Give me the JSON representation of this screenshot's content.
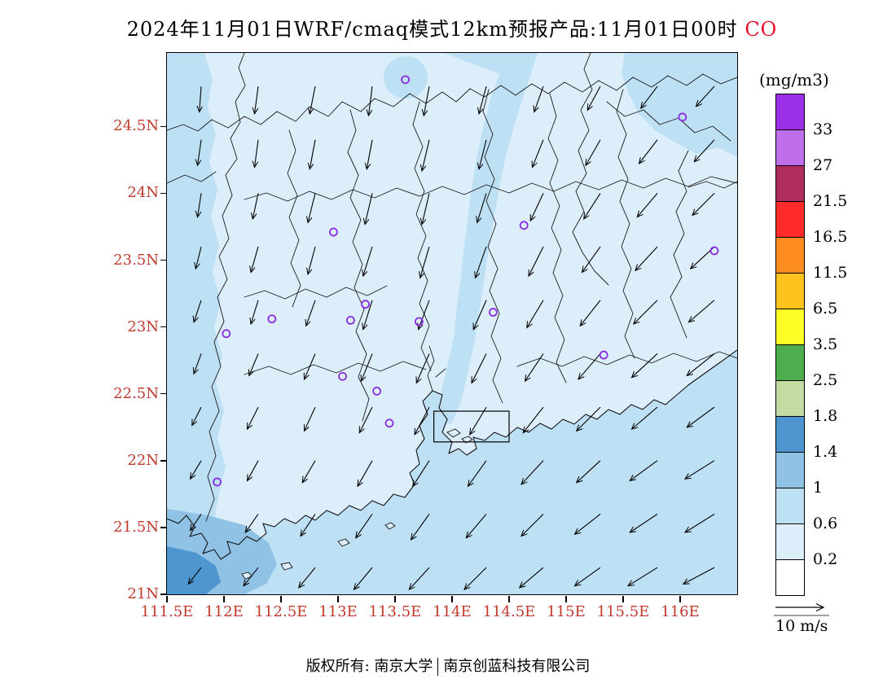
{
  "title": {
    "main": "2024年11月01日WRF/cmaq模式12km预报产品:11月01日00时",
    "species": "CO",
    "species_color": "#e8112d"
  },
  "axes": {
    "tick_color": "#c0392b",
    "lat_ticks": [
      "24.5N",
      "24N",
      "23.5N",
      "23N",
      "22.5N",
      "22N",
      "21.5N",
      "21N"
    ],
    "lat_values": [
      24.5,
      24,
      23.5,
      23,
      22.5,
      22,
      21.5,
      21
    ],
    "lon_ticks": [
      "111.5E",
      "112E",
      "112.5E",
      "113E",
      "113.5E",
      "114E",
      "114.5E",
      "115E",
      "115.5E",
      "116E"
    ],
    "lon_values": [
      111.5,
      112,
      112.5,
      113,
      113.5,
      114,
      114.5,
      115,
      115.5,
      116
    ]
  },
  "legend": {
    "title": "(mg/m3)",
    "labels": [
      "33",
      "27",
      "21.5",
      "16.5",
      "11.5",
      "6.5",
      "3.5",
      "2.5",
      "1.8",
      "1.4",
      "1",
      "0.6",
      "0.2"
    ]
  },
  "wind_ref": {
    "label": "10 m/s"
  },
  "footer": {
    "left": "版权所有: 南京大学",
    "right": "南京创蓝科技有限公司"
  },
  "chart_data": {
    "type": "heatmap",
    "title": "2024年11月01日WRF/cmaq模式12km预报产品:11月01日00时 CO",
    "units": "mg/m3",
    "extent": {
      "lon_min": 111.5,
      "lon_max": 116.5,
      "lat_min": 21.0,
      "lat_max": 25.05
    },
    "levels": [
      0.2,
      0.6,
      1,
      1.4,
      1.8,
      2.5,
      3.5,
      6.5,
      11.5,
      16.5,
      21.5,
      27,
      33
    ],
    "level_colors": [
      "#FFFFFF",
      "#DCEEF9",
      "#BEE0F4",
      "#8FC2E4",
      "#4E96D0",
      "#C2DCA4",
      "#4CAE4C",
      "#FFFF28",
      "#FFC31E",
      "#FF8C1E",
      "#FF2A2A",
      "#B02C5C",
      "#BE6EE8",
      "#9B30E8"
    ],
    "station_color": "#8A2BE2",
    "stations": [
      [
        113.59,
        24.85
      ],
      [
        116.02,
        24.57
      ],
      [
        112.96,
        23.71
      ],
      [
        114.63,
        23.76
      ],
      [
        116.3,
        23.57
      ],
      [
        113.11,
        23.05
      ],
      [
        113.24,
        23.17
      ],
      [
        112.42,
        23.06
      ],
      [
        112.02,
        22.95
      ],
      [
        113.71,
        23.04
      ],
      [
        114.36,
        23.11
      ],
      [
        115.33,
        22.79
      ],
      [
        113.04,
        22.63
      ],
      [
        113.34,
        22.52
      ],
      [
        113.45,
        22.28
      ],
      [
        111.94,
        21.84
      ]
    ],
    "inner_box": {
      "lon_min": 113.84,
      "lon_max": 114.5,
      "lat_min": 22.14,
      "lat_max": 22.37
    },
    "wind_reference": {
      "speed_m_s": 10,
      "label": "10 m/s"
    },
    "wind": {
      "lons": [
        111.8,
        112.3,
        112.8,
        113.3,
        113.8,
        114.3,
        114.8,
        115.3,
        115.8,
        116.3
      ],
      "lats": [
        24.8,
        24.4,
        24.0,
        23.6,
        23.2,
        22.8,
        22.4,
        22.0,
        21.6,
        21.2
      ],
      "u": [
        [
          -0.5,
          -1,
          -1.5,
          -1,
          -1.5,
          -2,
          -2.5,
          -3.5,
          -4.5,
          -5
        ],
        [
          -1,
          -1,
          -1.5,
          -1.5,
          -2,
          -2,
          -3,
          -4,
          -5,
          -5.5
        ],
        [
          -1,
          -1.5,
          -2,
          -2,
          -2,
          -2.5,
          -3.5,
          -4.5,
          -5.5,
          -6
        ],
        [
          -1.5,
          -2,
          -2,
          -2.5,
          -2.5,
          -3,
          -4,
          -5,
          -6,
          -6.5
        ],
        [
          -2,
          -2,
          -2.5,
          -2.5,
          -3,
          -3.5,
          -4.5,
          -5.5,
          -6.5,
          -7
        ],
        [
          -2,
          -2.5,
          -3,
          -3,
          -3.5,
          -4,
          -5,
          -6,
          -7,
          -7.5
        ],
        [
          -2.5,
          -3,
          -3,
          -3.5,
          -4,
          -4.5,
          -5.5,
          -6.5,
          -7,
          -7.5
        ],
        [
          -3,
          -3,
          -3.5,
          -4,
          -4.5,
          -5,
          -6,
          -6.5,
          -7.5,
          -8
        ],
        [
          -3,
          -3.5,
          -4,
          -4.5,
          -5,
          -5.5,
          -6,
          -7,
          -7.5,
          -8
        ],
        [
          -3.5,
          -4,
          -4.5,
          -5,
          -5.5,
          -6,
          -6.5,
          -7,
          -8,
          -8.5
        ]
      ],
      "v": [
        [
          -7,
          -7.5,
          -7.5,
          -8,
          -8,
          -7.5,
          -7,
          -6.5,
          -6,
          -5.5
        ],
        [
          -7,
          -7.5,
          -8,
          -8,
          -8.5,
          -8,
          -7.5,
          -7,
          -6.5,
          -6
        ],
        [
          -6.5,
          -7,
          -8,
          -8.5,
          -8.5,
          -8,
          -7.5,
          -7,
          -6.5,
          -6
        ],
        [
          -6,
          -7,
          -7.5,
          -8,
          -8.5,
          -8.5,
          -8,
          -7,
          -6.5,
          -6
        ],
        [
          -6,
          -6.5,
          -7,
          -8,
          -8,
          -8,
          -7.5,
          -7,
          -6.5,
          -6
        ],
        [
          -5.5,
          -6,
          -7,
          -7.5,
          -8,
          -8,
          -7.5,
          -7,
          -6.5,
          -6
        ],
        [
          -5,
          -6,
          -6.5,
          -7,
          -7.5,
          -7.5,
          -7,
          -6.5,
          -6,
          -5.5
        ],
        [
          -5,
          -5.5,
          -6,
          -7,
          -7,
          -7,
          -6.5,
          -6,
          -5.5,
          -5
        ],
        [
          -4.5,
          -5,
          -6,
          -6.5,
          -7,
          -6.5,
          -6,
          -5.5,
          -5,
          -5
        ],
        [
          -4.5,
          -5,
          -5.5,
          -6,
          -6,
          -6,
          -5.5,
          -5,
          -5,
          -4.5
        ]
      ]
    }
  }
}
